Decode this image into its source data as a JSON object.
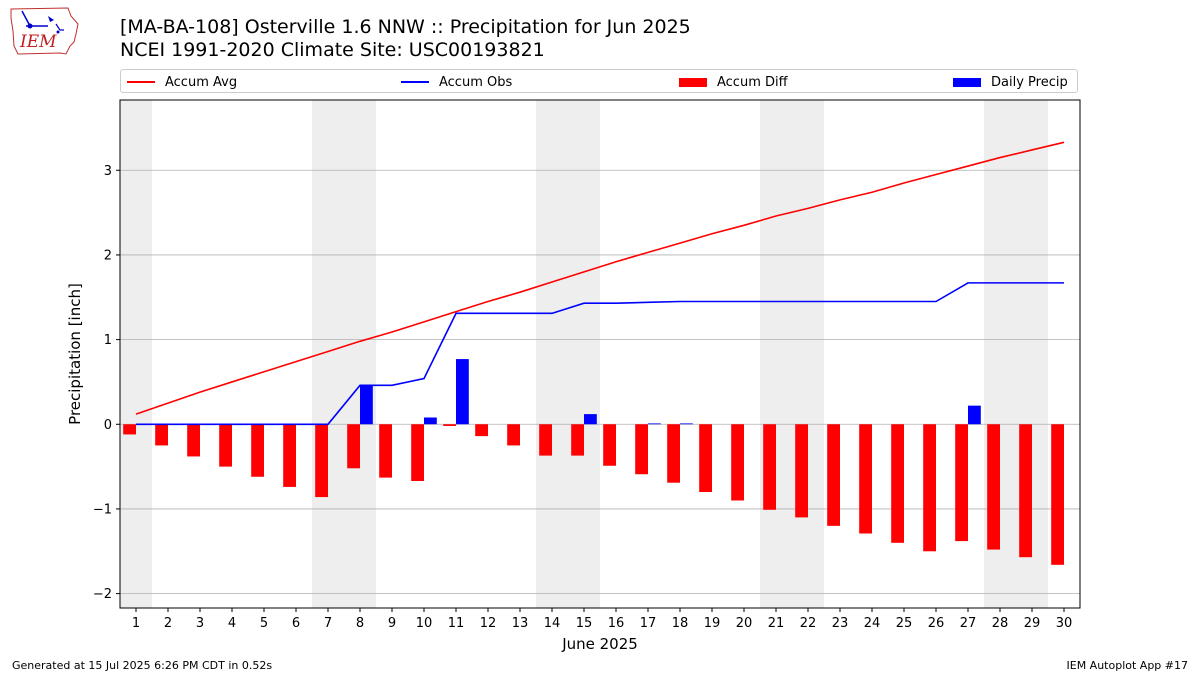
{
  "title_line1": "[MA-BA-108] Osterville 1.6 NNW :: Precipitation for Jun 2025",
  "title_line2": "NCEI 1991-2020 Climate Site: USC00193821",
  "logo_text": "IEM",
  "footer_left": "Generated at 15 Jul 2025 6:26 PM CDT in 0.52s",
  "footer_right": "IEM Autoplot App #17",
  "colors": {
    "accum_avg": "#ff0000",
    "accum_obs": "#0000ff",
    "accum_diff": "#ff0000",
    "daily_precip": "#0000ff",
    "weekend_shade": "#eeeeee",
    "grid": "#b0b0b0"
  },
  "chart_data": {
    "type": "bar",
    "title": "[MA-BA-108] Osterville 1.6 NNW :: Precipitation for Jun 2025",
    "subtitle": "NCEI 1991-2020 Climate Site: USC00193821",
    "xlabel": "June 2025",
    "ylabel": "Precipitation [inch]",
    "ylim": [
      -2.17,
      3.83
    ],
    "xlim": [
      0.5,
      30.5
    ],
    "yticks": [
      -2,
      -1,
      0,
      1,
      2,
      3
    ],
    "ytick_labels": [
      "−2",
      "−1",
      "0",
      "1",
      "2",
      "3"
    ],
    "x": [
      1,
      2,
      3,
      4,
      5,
      6,
      7,
      8,
      9,
      10,
      11,
      12,
      13,
      14,
      15,
      16,
      17,
      18,
      19,
      20,
      21,
      22,
      23,
      24,
      25,
      26,
      27,
      28,
      29,
      30
    ],
    "grid": "y",
    "legend_position": "top",
    "shaded_weekends": [
      [
        0.5,
        1.5
      ],
      [
        6.5,
        8.5
      ],
      [
        13.5,
        15.5
      ],
      [
        20.5,
        22.5
      ],
      [
        27.5,
        29.5
      ]
    ],
    "series": [
      {
        "name": "Accum Avg",
        "type": "line",
        "values": [
          0.12,
          0.25,
          0.38,
          0.5,
          0.62,
          0.74,
          0.86,
          0.98,
          1.09,
          1.21,
          1.33,
          1.45,
          1.56,
          1.68,
          1.8,
          1.92,
          2.03,
          2.14,
          2.25,
          2.35,
          2.46,
          2.55,
          2.65,
          2.74,
          2.85,
          2.95,
          3.05,
          3.15,
          3.24,
          3.33
        ]
      },
      {
        "name": "Accum Obs",
        "type": "line",
        "values": [
          0,
          0,
          0,
          0,
          0,
          0,
          0,
          0.46,
          0.46,
          0.54,
          1.31,
          1.31,
          1.31,
          1.31,
          1.43,
          1.43,
          1.44,
          1.45,
          1.45,
          1.45,
          1.45,
          1.45,
          1.45,
          1.45,
          1.45,
          1.45,
          1.67,
          1.67,
          1.67,
          1.67
        ]
      },
      {
        "name": "Accum Diff",
        "type": "bar",
        "values": [
          -0.12,
          -0.25,
          -0.38,
          -0.5,
          -0.62,
          -0.74,
          -0.86,
          -0.52,
          -0.63,
          -0.67,
          -0.02,
          -0.14,
          -0.25,
          -0.37,
          -0.37,
          -0.49,
          -0.59,
          -0.69,
          -0.8,
          -0.9,
          -1.01,
          -1.1,
          -1.2,
          -1.29,
          -1.4,
          -1.5,
          -1.38,
          -1.48,
          -1.57,
          -1.66
        ]
      },
      {
        "name": "Daily Precip",
        "type": "bar",
        "values": [
          0,
          0,
          0,
          0,
          0,
          0,
          0,
          0.46,
          0,
          0.08,
          0.77,
          0,
          0,
          0,
          0.12,
          0,
          0.01,
          0.01,
          0,
          0,
          0,
          0,
          0,
          0,
          0,
          0,
          0.22,
          0,
          0,
          0
        ]
      }
    ]
  }
}
